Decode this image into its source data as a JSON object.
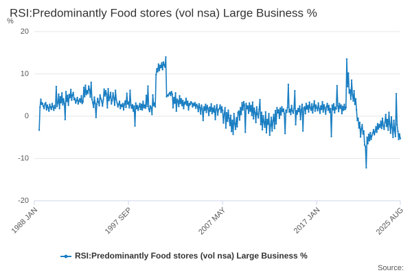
{
  "chart_data": {
    "type": "line",
    "title": "RSI:Predominantly Food stores (vol nsa) Large Business %",
    "y_label": "%",
    "source_label": "Source:",
    "ylim": [
      -20,
      20
    ],
    "yticks": [
      20,
      10,
      0,
      -10,
      -20
    ],
    "grid": true,
    "categories": [
      "1988 JAN",
      null,
      null,
      null,
      null,
      null,
      null,
      null,
      null,
      null,
      null,
      null,
      null,
      null,
      null,
      null,
      null,
      null,
      null,
      null,
      null,
      null,
      null,
      null,
      null,
      null,
      null,
      null,
      null,
      null,
      null,
      null,
      null,
      null,
      null,
      null,
      null,
      null,
      null,
      null,
      null,
      null,
      null,
      null,
      null,
      null,
      null,
      null,
      null,
      null,
      null,
      null,
      null,
      null,
      null,
      null,
      null,
      null,
      null,
      null,
      null,
      null,
      null,
      null,
      null,
      null,
      null,
      null,
      null,
      null,
      null,
      null,
      null,
      null,
      null,
      null,
      null,
      null,
      null,
      null,
      null,
      null,
      null,
      null,
      null,
      null,
      null,
      null,
      null,
      null,
      null,
      null,
      null,
      null,
      null,
      null,
      null,
      null,
      null,
      null,
      null,
      null,
      null,
      null,
      null,
      null,
      null,
      null,
      null,
      null,
      null,
      null,
      null,
      null,
      null,
      null,
      "1997 SEP",
      null,
      null,
      null,
      null,
      null,
      null,
      null,
      null,
      null,
      null,
      null,
      null,
      null,
      null,
      null,
      null,
      null,
      null,
      null,
      null,
      null,
      null,
      null,
      null,
      null,
      null,
      null,
      null,
      null,
      null,
      null,
      null,
      null,
      null,
      null,
      null,
      null,
      null,
      null,
      null,
      null,
      null,
      null,
      null,
      null,
      null,
      null,
      null,
      null,
      null,
      null,
      null,
      null,
      null,
      null,
      null,
      null,
      null,
      null,
      null,
      null,
      null,
      null,
      null,
      null,
      null,
      null,
      null,
      null,
      null,
      null,
      null,
      null,
      null,
      null,
      null,
      null,
      null,
      null,
      null,
      null,
      null,
      null,
      null,
      null,
      null,
      null,
      null,
      null,
      null,
      null,
      null,
      null,
      null,
      null,
      null,
      null,
      null,
      null,
      null,
      null,
      null,
      null,
      null,
      null,
      null,
      null,
      null,
      null,
      null,
      null,
      null,
      null,
      null,
      null,
      "2007 MAY",
      null,
      null,
      null,
      null,
      null,
      null,
      null,
      null,
      null,
      null,
      null,
      null,
      null,
      null,
      null,
      null,
      null,
      null,
      null,
      null,
      null,
      null,
      null,
      null,
      null,
      null,
      null,
      null,
      null,
      null,
      null,
      null,
      null,
      null,
      null,
      null,
      null,
      null,
      null,
      null,
      null,
      null,
      null,
      null,
      null,
      null,
      null,
      null,
      null,
      null,
      null,
      null,
      null,
      null,
      null,
      null,
      null,
      null,
      null,
      null,
      null,
      null,
      null,
      null,
      null,
      null,
      null,
      null,
      null,
      null,
      null,
      null,
      null,
      null,
      null,
      null,
      null,
      null,
      null,
      null,
      null,
      null,
      null,
      null,
      null,
      null,
      null,
      null,
      null,
      null,
      null,
      null,
      null,
      null,
      null,
      null,
      null,
      null,
      null,
      null,
      null,
      null,
      null,
      null,
      null,
      null,
      null,
      null,
      null,
      null,
      null,
      null,
      null,
      null,
      null,
      "2017 JAN",
      null,
      null,
      null,
      null,
      null,
      null,
      null,
      null,
      null,
      null,
      null,
      null,
      null,
      null,
      null,
      null,
      null,
      null,
      null,
      null,
      null,
      null,
      null,
      null,
      null,
      null,
      null,
      null,
      null,
      null,
      null,
      null,
      null,
      null,
      null,
      null,
      null,
      null,
      null,
      null,
      null,
      null,
      null,
      null,
      null,
      null,
      null,
      null,
      null,
      null,
      null,
      null,
      null,
      null,
      null,
      null,
      null,
      null,
      null,
      null,
      null,
      null,
      null,
      null,
      null,
      null,
      null,
      null,
      null,
      null,
      null,
      null,
      null,
      null,
      null,
      null,
      null,
      null,
      null,
      null,
      null,
      null,
      null,
      null,
      null,
      null,
      null,
      null,
      null,
      null,
      null,
      null,
      null,
      null,
      null,
      null,
      null,
      null,
      null,
      null,
      null,
      null,
      "2025 AUG"
    ],
    "series": [
      {
        "name": "RSI:Predominantly Food stores (vol nsa) Large Business %",
        "color": "#1a7ec2",
        "values": [
          null,
          null,
          null,
          null,
          null,
          null,
          -3.3,
          2.1,
          4.0,
          2.8,
          3.1,
          2.4,
          1.8,
          2.9,
          3.2,
          1.5,
          2.6,
          2.0,
          1.2,
          2.8,
          2.1,
          1.6,
          3.0,
          2.2,
          1.4,
          2.5,
          1.9,
          7.0,
          2.3,
          3.1,
          5.2,
          1.8,
          4.6,
          3.2,
          5.5,
          2.7,
          4.1,
          3.0,
          -0.8,
          5.8,
          3.5,
          4.9,
          2.6,
          5.1,
          4.4,
          6.3,
          3.8,
          5.0,
          5.6,
          3.9,
          4.2,
          3.1,
          3.7,
          4.4,
          2.9,
          3.6,
          4.1,
          3.3,
          4.8,
          3.0,
          3.4,
          6.8,
          4.6,
          7.3,
          5.1,
          6.0,
          5.4,
          7.1,
          6.2,
          4.5,
          8.0,
          4.0,
          3.2,
          2.1,
          4.5,
          3.0,
          -0.3,
          2.8,
          4.2,
          3.3,
          2.5,
          5.0,
          4.1,
          3.6,
          2.4,
          3.9,
          6.4,
          4.8,
          6.0,
          5.2,
          2.0,
          6.5,
          3.7,
          4.4,
          5.6,
          2.9,
          3.8,
          5.5,
          4.3,
          2.6,
          6.1,
          3.9,
          3.1,
          2.2,
          2.8,
          3.5,
          1.8,
          2.7,
          2.3,
          3.0,
          1.5,
          2.8,
          3.6,
          2.1,
          5.4,
          2.9,
          3.3,
          2.0,
          6.1,
          2.6,
          1.9,
          2.7,
          1.2,
          2.4,
          -2.3,
          3.1,
          1.8,
          2.5,
          1.4,
          2.2,
          3.0,
          1.6,
          2.8,
          1.5,
          3.5,
          2.0,
          2.6,
          1.9,
          4.9,
          2.3,
          7.1,
          1.7,
          1.1,
          2.4,
          2.0,
          0.4,
          5.0,
          2.5,
          3.1,
          2.2,
          9.8,
          11.2,
          10.5,
          12.3,
          10.8,
          12.0,
          11.5,
          12.6,
          11.0,
          12.8,
          12.1,
          11.6,
          14.0,
          4.6,
          5.0,
          4.8,
          5.3,
          5.6,
          4.9,
          5.8,
          5.2,
          2.0,
          4.4,
          3.1,
          5.5,
          1.2,
          4.0,
          3.6,
          2.3,
          4.8,
          3.0,
          4.1,
          2.5,
          3.7,
          1.8,
          3.3,
          2.9,
          4.2,
          2.6,
          3.5,
          1.5,
          3.0,
          2.7,
          3.4,
          3.1,
          2.2,
          3.0,
          2.5,
          3.2,
          1.9,
          2.8,
          2.4,
          1.1,
          2.9,
          2.0,
          0.5,
          2.6,
          1.7,
          -1.0,
          2.2,
          1.4,
          2.8,
          0.9,
          2.5,
          1.8,
          0.2,
          2.1,
          1.2,
          2.9,
          0.6,
          1.9,
          1.0,
          2.4,
          -0.8,
          1.6,
          2.7,
          0.3,
          1.5,
          1.8,
          2.6,
          0.9,
          2.2,
          1.3,
          -1.6,
          0.5,
          2.0,
          -2.8,
          0.8,
          -1.2,
          1.4,
          -0.5,
          -2.2,
          0.2,
          -3.6,
          -1.0,
          -4.3,
          0.6,
          -1.8,
          -3.1,
          -0.4,
          -2.5,
          0.9,
          1.2,
          -0.9,
          2.0,
          0.4,
          3.2,
          1.5,
          3.4,
          2.6,
          -3.8,
          3.0,
          1.8,
          2.4,
          0.7,
          3.1,
          1.2,
          2.5,
          0.2,
          3.3,
          -0.6,
          1.9,
          0.8,
          -1.5,
          2.2,
          0.5,
          -0.4,
          1.6,
          3.9,
          -2.0,
          0.9,
          -3.2,
          0.1,
          -1.4,
          -2.6,
          1.0,
          -3.9,
          -0.8,
          -1.9,
          0.6,
          -4.5,
          -2.2,
          -0.3,
          -3.5,
          -1.1,
          0.4,
          -2.9,
          1.3,
          -1.8,
          2.0,
          0.8,
          1.5,
          -0.5,
          1.9,
          0.3,
          2.2,
          1.1,
          1.7,
          0.6,
          -4.1,
          1.4,
          0.9,
          2.1,
          7.5,
          1.0,
          1.6,
          0.4,
          2.5,
          1.2,
          0.7,
          1.9,
          6.0,
          -2.0,
          1.3,
          0.5,
          1.8,
          1.1,
          2.4,
          -0.8,
          1.5,
          2.8,
          -3.5,
          1.9,
          2.2,
          0.6,
          3.0,
          1.7,
          2.5,
          1.0,
          3.3,
          2.0,
          1.4,
          2.9,
          0.8,
          2.3,
          3.6,
          1.2,
          2.6,
          2.0,
          1.3,
          3.1,
          1.8,
          0.7,
          2.4,
          1.6,
          3.4,
          1.0,
          2.7,
          1.9,
          0.5,
          2.2,
          3.0,
          1.4,
          2.5,
          0.9,
          1.8,
          -4.8,
          2.6,
          1.5,
          2.9,
          0.8,
          2.1,
          1.7,
          7.2,
          2.4,
          1.1,
          3.0,
          1.9,
          2.6,
          0.6,
          2.3,
          1.4,
          2.8,
          1.6,
          2.0,
          13.5,
          7.0,
          10.2,
          5.5,
          6.2,
          4.0,
          8.5,
          5.1,
          3.6,
          6.0,
          2.8,
          4.1,
          1.5,
          -1.0,
          -0.5,
          -2.8,
          -1.5,
          -4.9,
          -3.0,
          -2.0,
          -4.2,
          -3.5,
          -6.8,
          -7.2,
          -12.2,
          -5.0,
          -6.5,
          -4.3,
          -5.8,
          -3.9,
          -5.5,
          -4.6,
          -4.0,
          -3.2,
          -4.4,
          -3.6,
          -2.5,
          -3.8,
          -1.8,
          -3.0,
          -2.0,
          -2.6,
          -1.2,
          -2.9,
          -0.5,
          -2.2,
          -3.1,
          -1.5,
          0.4,
          -2.4,
          -0.8,
          -3.3,
          0.9,
          -1.9,
          -4.0,
          -0.2,
          -2.7,
          -5.0,
          -1.0,
          -3.4,
          -4.8,
          5.3,
          -2.0,
          -3.6,
          -5.5,
          -4.2,
          -5.3
        ]
      }
    ]
  }
}
